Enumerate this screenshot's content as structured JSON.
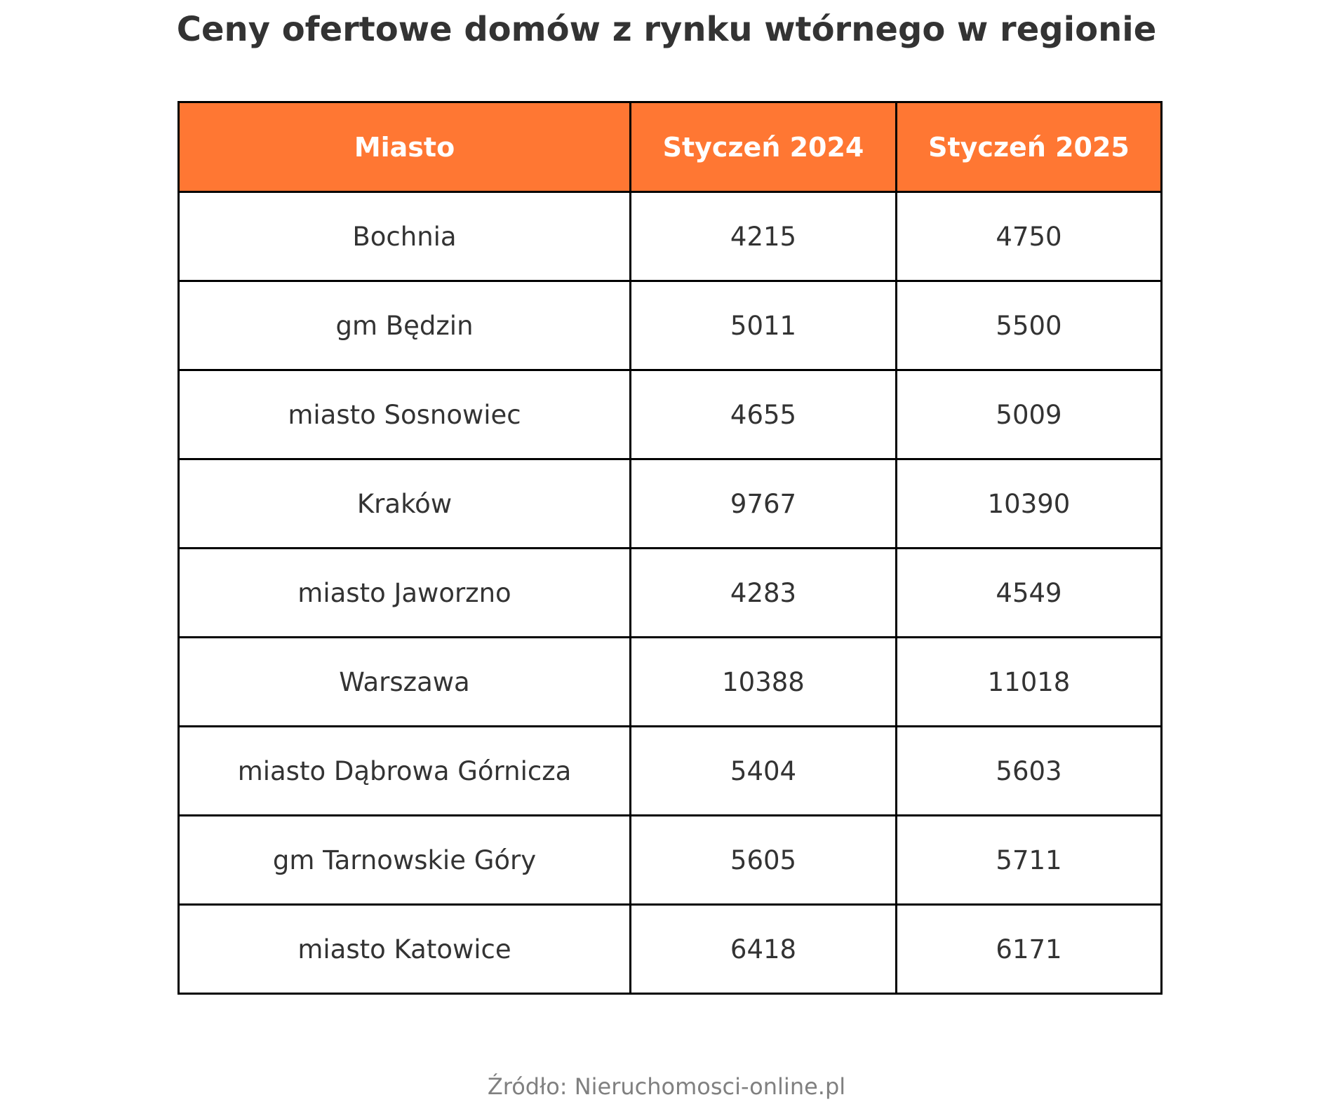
{
  "title": "Ceny ofertowe domów z rynku wtórnego w regionie",
  "colors": {
    "header_bg": "#FF7733",
    "header_text": "#FFFFFF"
  },
  "table": {
    "headers": [
      "Miasto",
      "Styczeń 2024",
      "Styczeń 2025"
    ],
    "rows": [
      [
        "Bochnia",
        "4215",
        "4750"
      ],
      [
        "gm Będzin",
        "5011",
        "5500"
      ],
      [
        "miasto Sosnowiec",
        "4655",
        "5009"
      ],
      [
        "Kraków",
        "9767",
        "10390"
      ],
      [
        "miasto Jaworzno",
        "4283",
        "4549"
      ],
      [
        "Warszawa",
        "10388",
        "11018"
      ],
      [
        "miasto Dąbrowa Górnicza",
        "5404",
        "5603"
      ],
      [
        "gm Tarnowskie Góry",
        "5605",
        "5711"
      ],
      [
        "miasto Katowice",
        "6418",
        "6171"
      ]
    ]
  },
  "footer": "Źródło: Nieruchomosci-online.pl"
}
